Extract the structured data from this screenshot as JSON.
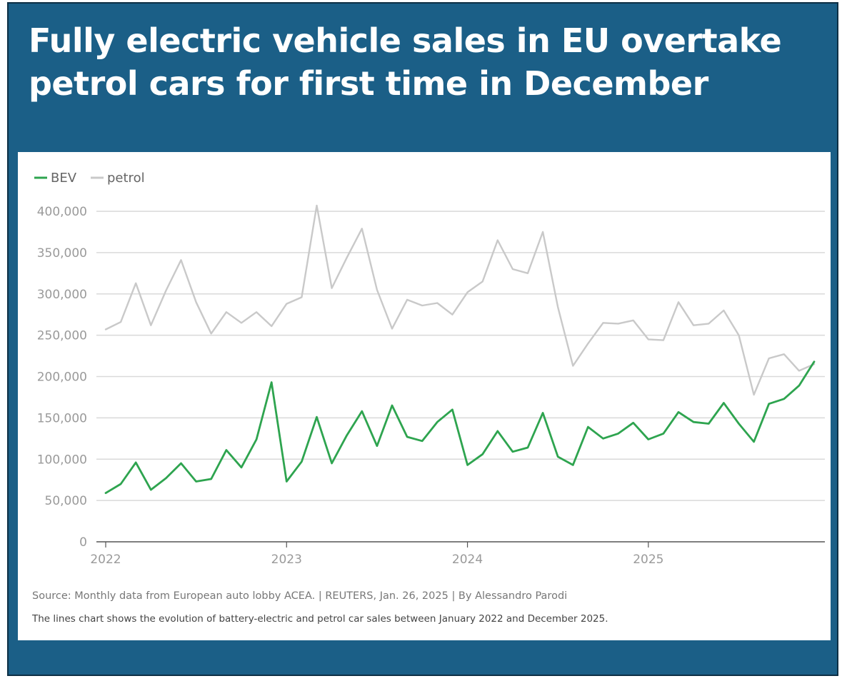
{
  "headline": "Fully electric vehicle sales in EU overtake petrol cars for first time in December",
  "chart_data": {
    "type": "line",
    "legend": [
      "BEV",
      "petrol"
    ],
    "colors": {
      "BEV": "#2ea44f",
      "petrol": "#c9c9c9",
      "grid": "#d9d9d9",
      "axis": "#555555"
    },
    "y_ticks": [
      0,
      50000,
      100000,
      150000,
      200000,
      250000,
      300000,
      350000,
      400000
    ],
    "y_tick_labels": [
      "0",
      "50,000",
      "100,000",
      "150,000",
      "200,000",
      "250,000",
      "300,000",
      "350,000",
      "400,000"
    ],
    "ylim": [
      0,
      400000
    ],
    "x_tick_labels": [
      "2022",
      "2023",
      "2024",
      "2025"
    ],
    "x_start": "January 2022",
    "x_end": "December 2025",
    "series": [
      {
        "name": "BEV",
        "values": [
          59000,
          70000,
          96000,
          63000,
          77000,
          95000,
          73000,
          76000,
          111000,
          90000,
          124000,
          193000,
          73000,
          97000,
          151000,
          95000,
          129000,
          158000,
          116000,
          165000,
          127000,
          122000,
          145000,
          160000,
          93000,
          106000,
          134000,
          109000,
          114000,
          156000,
          103000,
          93000,
          139000,
          125000,
          131000,
          144000,
          124000,
          131000,
          157000,
          145000,
          143000,
          168000,
          143000,
          121000,
          167000,
          173000,
          189000,
          218000
        ]
      },
      {
        "name": "petrol",
        "values": [
          257000,
          266000,
          313000,
          262000,
          304000,
          341000,
          290000,
          252000,
          278000,
          265000,
          278000,
          261000,
          288000,
          296000,
          407000,
          307000,
          344000,
          379000,
          305000,
          258000,
          293000,
          286000,
          289000,
          275000,
          302000,
          315000,
          365000,
          330000,
          325000,
          375000,
          284000,
          213000,
          240000,
          265000,
          264000,
          268000,
          245000,
          244000,
          290000,
          262000,
          264000,
          280000,
          250000,
          178000,
          222000,
          227000,
          207000,
          215000
        ]
      }
    ],
    "source": "Source: Monthly data from European auto lobby ACEA. | REUTERS, Jan. 26, 2025 | By Alessandro Parodi",
    "description": "The lines chart shows the evolution of battery-electric and petrol car sales between January 2022 and December 2025."
  }
}
